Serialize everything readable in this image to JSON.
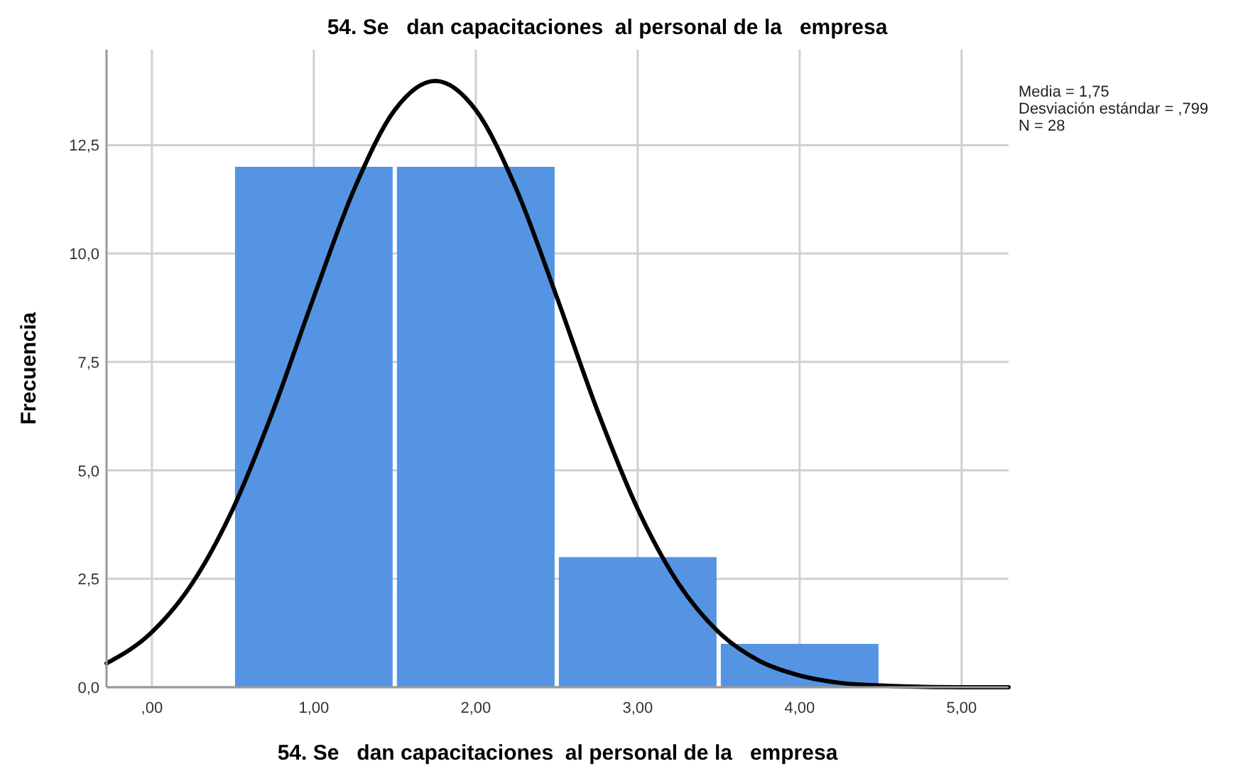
{
  "chart_data": {
    "type": "histogram",
    "title": "54. Se   dan capacitaciones  al personal de la   empresa",
    "xlabel": "54. Se   dan capacitaciones  al personal de la   empresa",
    "ylabel": "Frecuencia",
    "bins": [
      0.5,
      1.5,
      2.5,
      3.5,
      4.5
    ],
    "series": [
      {
        "color": "#5594e3",
        "values": [
          12,
          12,
          3,
          1
        ]
      },
      {
        "type": "line",
        "color": "#000000",
        "x": [
          -0.28,
          0,
          0.25,
          0.5,
          0.75,
          1,
          1.25,
          1.5,
          1.75,
          2,
          2.25,
          2.5,
          2.75,
          3,
          3.25,
          3.5,
          3.75,
          4,
          4.25,
          4.5,
          5,
          5.29
        ],
        "values": [
          0.55,
          1.27,
          2.4,
          4.11,
          6.39,
          9.0,
          11.49,
          13.31,
          13.98,
          13.31,
          11.49,
          9.0,
          6.39,
          4.11,
          2.4,
          1.27,
          0.61,
          0.27,
          0.1,
          0.04,
          0,
          0
        ]
      }
    ],
    "xlim": [
      -0.28,
      5.29
    ],
    "ylim": [
      0,
      14.7
    ],
    "xticks": [
      {
        "value": 0,
        "label": ",00"
      },
      {
        "value": 1,
        "label": "1,00"
      },
      {
        "value": 2,
        "label": "2,00"
      },
      {
        "value": 3,
        "label": "3,00"
      },
      {
        "value": 4,
        "label": "4,00"
      },
      {
        "value": 5,
        "label": "5,00"
      }
    ],
    "yticks": [
      {
        "value": 0,
        "label": "0,0"
      },
      {
        "value": 2.5,
        "label": "2,5"
      },
      {
        "value": 5,
        "label": "5,0"
      },
      {
        "value": 7.5,
        "label": "7,5"
      },
      {
        "value": 10,
        "label": "10,0"
      },
      {
        "value": 12.5,
        "label": "12,5"
      }
    ],
    "grid": true,
    "annotations": [
      "Media = 1,75",
      "Desviación estándar = ,799",
      "N = 28"
    ]
  }
}
